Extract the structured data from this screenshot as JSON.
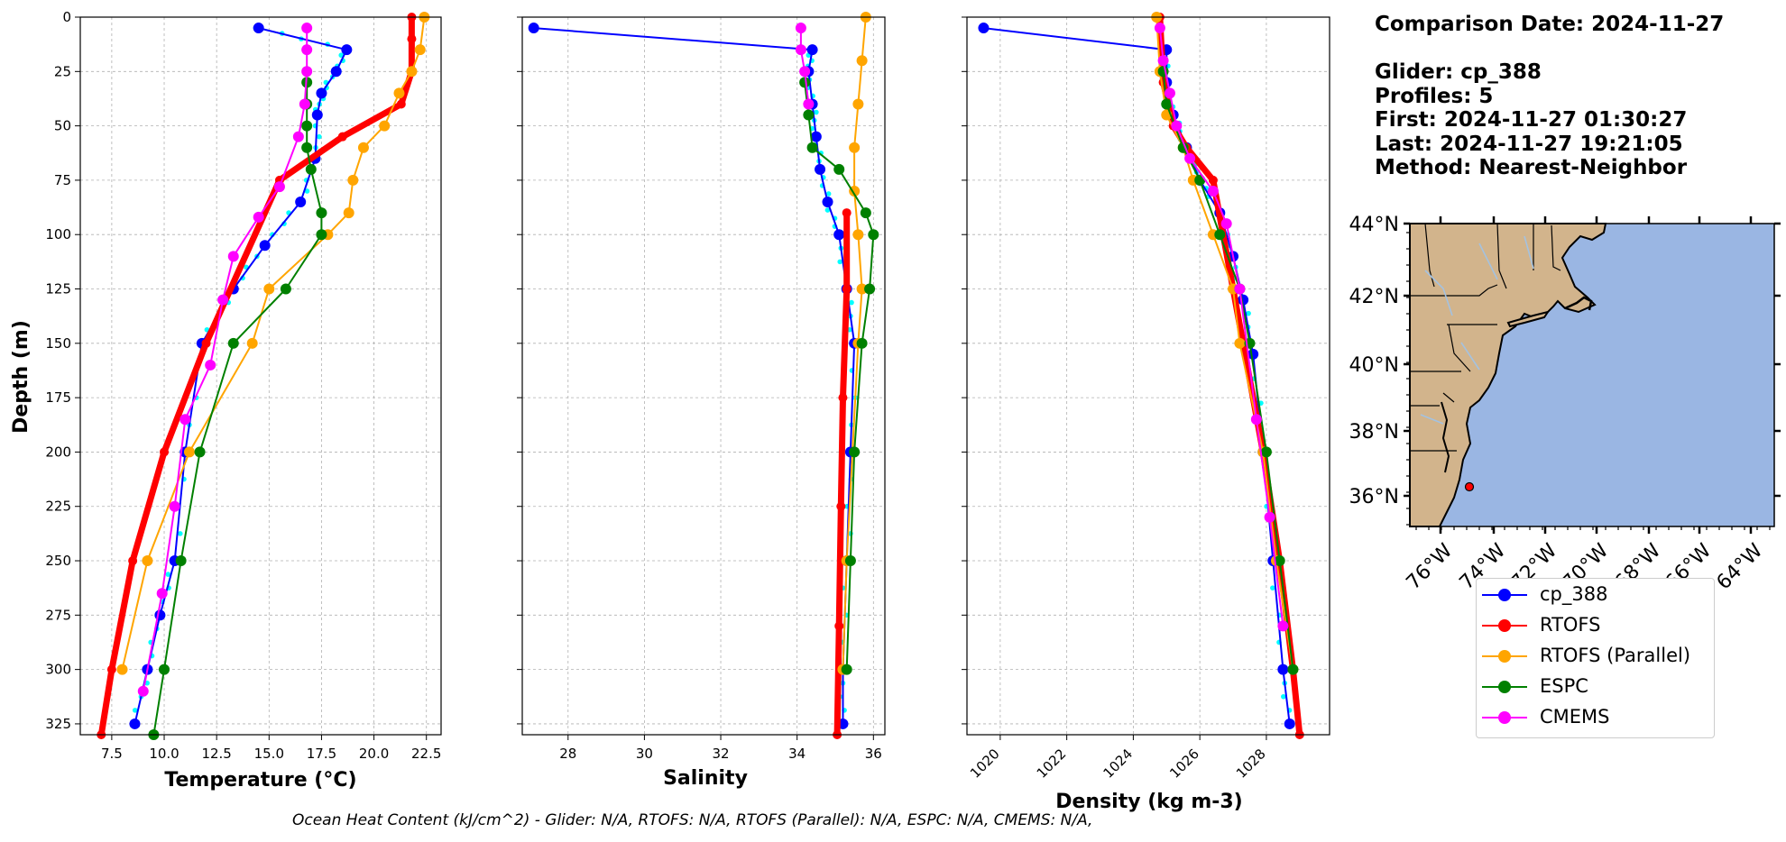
{
  "info": {
    "comparison_date": "Comparison Date: 2024-11-27",
    "glider": "Glider: cp_388",
    "profiles": "Profiles: 5",
    "first": "First: 2024-11-27 01:30:27",
    "last": "Last: 2024-11-27 19:21:05",
    "method": "Method: Nearest-Neighbor"
  },
  "footer": "Ocean Heat Content (kJ/cm^2) - Glider: N/A,  RTOFS: N/A,  RTOFS (Parallel): N/A,  ESPC: N/A,  CMEMS: N/A,",
  "colors": {
    "glider": "#0000ff",
    "rtofs": "#ff0000",
    "rtofs_parallel": "#ffa500",
    "espc": "#008000",
    "cmems": "#ff00ff",
    "glider_raw": "#00ffff",
    "land": "#d2b48c",
    "ocean": "#9ab6e3",
    "river": "#a4c2e0"
  },
  "legend": [
    {
      "label": "cp_388",
      "color": "#0000ff"
    },
    {
      "label": "RTOFS",
      "color": "#ff0000"
    },
    {
      "label": "RTOFS (Parallel)",
      "color": "#ffa500"
    },
    {
      "label": "ESPC",
      "color": "#008000"
    },
    {
      "label": "CMEMS",
      "color": "#ff00ff"
    }
  ],
  "map": {
    "lat_labels": [
      "44°N",
      "42°N",
      "40°N",
      "38°N",
      "36°N"
    ],
    "lon_labels": [
      "76°W",
      "74°W",
      "72°W",
      "70°W",
      "68°W",
      "66°W",
      "64°W"
    ],
    "marker": {
      "lon": -74.2,
      "lat": 36.3
    }
  },
  "chart_data": [
    {
      "type": "line",
      "xlabel": "Temperature (°C)",
      "ylabel": "Depth (m)",
      "xlim": [
        6,
        23.2
      ],
      "ylim": [
        330,
        0
      ],
      "xticks": [
        "7.5",
        "10.0",
        "12.5",
        "15.0",
        "17.5",
        "20.0",
        "22.5"
      ],
      "yticks": [
        "0",
        "25",
        "50",
        "75",
        "100",
        "125",
        "150",
        "175",
        "200",
        "225",
        "250",
        "275",
        "300",
        "325"
      ],
      "grid": true,
      "series": [
        {
          "name": "cp_388",
          "x": [
            14.5,
            18.7,
            18.2,
            17.5,
            17.3,
            17.2,
            16.5,
            14.8,
            13.3,
            11.8,
            11.0,
            10.5,
            9.8,
            9.2,
            8.6
          ],
          "y": [
            5,
            15,
            25,
            35,
            45,
            65,
            85,
            105,
            125,
            150,
            200,
            250,
            275,
            300,
            325
          ]
        },
        {
          "name": "RTOFS",
          "x": [
            21.8,
            21.8,
            21.8,
            21.3,
            18.5,
            15.5,
            12.0,
            10.0,
            8.5,
            7.5,
            7.0
          ],
          "y": [
            0,
            10,
            25,
            40,
            55,
            75,
            150,
            200,
            250,
            300,
            330
          ]
        },
        {
          "name": "RTOFS (Parallel)",
          "x": [
            22.4,
            22.2,
            21.8,
            21.2,
            20.5,
            19.5,
            19.0,
            18.8,
            17.8,
            15.0,
            14.2,
            11.2,
            9.2,
            8.0
          ],
          "y": [
            0,
            15,
            25,
            35,
            50,
            60,
            75,
            90,
            100,
            125,
            150,
            200,
            250,
            300
          ]
        },
        {
          "name": "ESPC",
          "x": [
            16.8,
            16.8,
            16.8,
            16.8,
            17.0,
            17.5,
            17.5,
            15.8,
            13.3,
            11.7,
            10.8,
            10.0,
            9.5
          ],
          "y": [
            30,
            40,
            50,
            60,
            70,
            90,
            100,
            125,
            150,
            200,
            250,
            300,
            330
          ]
        },
        {
          "name": "CMEMS",
          "x": [
            16.8,
            16.8,
            16.8,
            16.7,
            16.4,
            15.5,
            14.5,
            13.3,
            12.8,
            12.2,
            11.0,
            10.5,
            9.9,
            9.0
          ],
          "y": [
            5,
            15,
            25,
            40,
            55,
            78,
            92,
            110,
            130,
            160,
            185,
            225,
            265,
            310
          ]
        }
      ]
    },
    {
      "type": "line",
      "xlabel": "Salinity",
      "ylabel": "",
      "xlim": [
        26.8,
        36.3
      ],
      "ylim": [
        330,
        0
      ],
      "xticks": [
        "28",
        "30",
        "32",
        "34",
        "36"
      ],
      "grid": true,
      "series": [
        {
          "name": "cp_388",
          "x": [
            27.1,
            34.4,
            34.3,
            34.4,
            34.5,
            34.6,
            34.8,
            35.1,
            35.3,
            35.5,
            35.4,
            35.3,
            35.2,
            35.2
          ],
          "y": [
            5,
            15,
            25,
            40,
            55,
            70,
            85,
            100,
            125,
            150,
            200,
            250,
            300,
            325
          ]
        },
        {
          "name": "RTOFS",
          "x": [
            35.3,
            35.3,
            35.2,
            35.15,
            35.1,
            35.05
          ],
          "y": [
            90,
            125,
            175,
            225,
            280,
            330
          ]
        },
        {
          "name": "RTOFS (Parallel)",
          "x": [
            35.8,
            35.7,
            35.6,
            35.5,
            35.5,
            35.6,
            35.7,
            35.6,
            35.3,
            35.2
          ],
          "y": [
            0,
            20,
            40,
            60,
            80,
            100,
            125,
            150,
            250,
            300
          ]
        },
        {
          "name": "ESPC",
          "x": [
            34.2,
            34.3,
            34.4,
            35.1,
            35.8,
            36.0,
            35.9,
            35.7,
            35.5,
            35.4,
            35.3
          ],
          "y": [
            30,
            45,
            60,
            70,
            90,
            100,
            125,
            150,
            200,
            250,
            300
          ]
        },
        {
          "name": "CMEMS",
          "x": [
            34.1,
            34.1,
            34.2,
            34.3
          ],
          "y": [
            5,
            15,
            25,
            40
          ]
        }
      ]
    },
    {
      "type": "line",
      "xlabel": "Density (kg m-3)",
      "ylabel": "",
      "xlim": [
        1019,
        1029.9
      ],
      "ylim": [
        330,
        0
      ],
      "xticks": [
        "1020",
        "1022",
        "1024",
        "1026",
        "1028"
      ],
      "grid": true,
      "series": [
        {
          "name": "cp_388",
          "x": [
            1019.5,
            1025.0,
            1025.0,
            1025.2,
            1025.6,
            1026.0,
            1026.6,
            1027.0,
            1027.3,
            1027.6,
            1027.9,
            1028.2,
            1028.5,
            1028.7
          ],
          "y": [
            5,
            15,
            30,
            45,
            60,
            75,
            90,
            110,
            130,
            155,
            200,
            250,
            300,
            325
          ]
        },
        {
          "name": "RTOFS",
          "x": [
            1024.8,
            1024.9,
            1025.2,
            1025.6,
            1026.4,
            1027.3,
            1027.9,
            1028.4,
            1028.8,
            1029.0
          ],
          "y": [
            0,
            30,
            50,
            60,
            75,
            150,
            200,
            250,
            300,
            330
          ]
        },
        {
          "name": "RTOFS (Parallel)",
          "x": [
            1024.7,
            1024.8,
            1025.0,
            1025.5,
            1025.8,
            1026.4,
            1027.0,
            1027.2,
            1027.9,
            1028.3,
            1028.8
          ],
          "y": [
            0,
            25,
            45,
            60,
            75,
            100,
            125,
            150,
            200,
            250,
            300
          ]
        },
        {
          "name": "ESPC",
          "x": [
            1024.9,
            1025.0,
            1025.5,
            1026.0,
            1026.6,
            1027.2,
            1027.5,
            1028.0,
            1028.4,
            1028.8
          ],
          "y": [
            25,
            40,
            60,
            75,
            100,
            125,
            150,
            200,
            250,
            300
          ]
        },
        {
          "name": "CMEMS",
          "x": [
            1024.8,
            1024.9,
            1025.1,
            1025.3,
            1025.7,
            1026.4,
            1026.8,
            1027.2,
            1027.7,
            1028.1,
            1028.5
          ],
          "y": [
            5,
            20,
            35,
            50,
            65,
            80,
            95,
            125,
            185,
            230,
            280
          ]
        }
      ]
    }
  ]
}
